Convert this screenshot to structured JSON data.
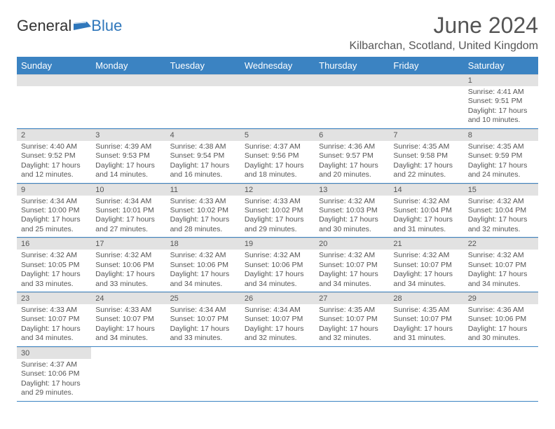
{
  "logo": {
    "text1": "General",
    "text2": "Blue",
    "flag_color": "#2f77bb"
  },
  "title": "June 2024",
  "location": "Kilbarchan, Scotland, United Kingdom",
  "calendar": {
    "header_bg": "#3b83c2",
    "header_fg": "#ffffff",
    "daynum_bg": "#e2e2e2",
    "border_color": "#3b83c2",
    "text_color": "#555555",
    "day_headers": [
      "Sunday",
      "Monday",
      "Tuesday",
      "Wednesday",
      "Thursday",
      "Friday",
      "Saturday"
    ],
    "first_weekday_index": 6,
    "days": [
      {
        "n": 1,
        "sunrise": "4:41 AM",
        "sunset": "9:51 PM",
        "daylight": "17 hours and 10 minutes."
      },
      {
        "n": 2,
        "sunrise": "4:40 AM",
        "sunset": "9:52 PM",
        "daylight": "17 hours and 12 minutes."
      },
      {
        "n": 3,
        "sunrise": "4:39 AM",
        "sunset": "9:53 PM",
        "daylight": "17 hours and 14 minutes."
      },
      {
        "n": 4,
        "sunrise": "4:38 AM",
        "sunset": "9:54 PM",
        "daylight": "17 hours and 16 minutes."
      },
      {
        "n": 5,
        "sunrise": "4:37 AM",
        "sunset": "9:56 PM",
        "daylight": "17 hours and 18 minutes."
      },
      {
        "n": 6,
        "sunrise": "4:36 AM",
        "sunset": "9:57 PM",
        "daylight": "17 hours and 20 minutes."
      },
      {
        "n": 7,
        "sunrise": "4:35 AM",
        "sunset": "9:58 PM",
        "daylight": "17 hours and 22 minutes."
      },
      {
        "n": 8,
        "sunrise": "4:35 AM",
        "sunset": "9:59 PM",
        "daylight": "17 hours and 24 minutes."
      },
      {
        "n": 9,
        "sunrise": "4:34 AM",
        "sunset": "10:00 PM",
        "daylight": "17 hours and 25 minutes."
      },
      {
        "n": 10,
        "sunrise": "4:34 AM",
        "sunset": "10:01 PM",
        "daylight": "17 hours and 27 minutes."
      },
      {
        "n": 11,
        "sunrise": "4:33 AM",
        "sunset": "10:02 PM",
        "daylight": "17 hours and 28 minutes."
      },
      {
        "n": 12,
        "sunrise": "4:33 AM",
        "sunset": "10:02 PM",
        "daylight": "17 hours and 29 minutes."
      },
      {
        "n": 13,
        "sunrise": "4:32 AM",
        "sunset": "10:03 PM",
        "daylight": "17 hours and 30 minutes."
      },
      {
        "n": 14,
        "sunrise": "4:32 AM",
        "sunset": "10:04 PM",
        "daylight": "17 hours and 31 minutes."
      },
      {
        "n": 15,
        "sunrise": "4:32 AM",
        "sunset": "10:04 PM",
        "daylight": "17 hours and 32 minutes."
      },
      {
        "n": 16,
        "sunrise": "4:32 AM",
        "sunset": "10:05 PM",
        "daylight": "17 hours and 33 minutes."
      },
      {
        "n": 17,
        "sunrise": "4:32 AM",
        "sunset": "10:06 PM",
        "daylight": "17 hours and 33 minutes."
      },
      {
        "n": 18,
        "sunrise": "4:32 AM",
        "sunset": "10:06 PM",
        "daylight": "17 hours and 34 minutes."
      },
      {
        "n": 19,
        "sunrise": "4:32 AM",
        "sunset": "10:06 PM",
        "daylight": "17 hours and 34 minutes."
      },
      {
        "n": 20,
        "sunrise": "4:32 AM",
        "sunset": "10:07 PM",
        "daylight": "17 hours and 34 minutes."
      },
      {
        "n": 21,
        "sunrise": "4:32 AM",
        "sunset": "10:07 PM",
        "daylight": "17 hours and 34 minutes."
      },
      {
        "n": 22,
        "sunrise": "4:32 AM",
        "sunset": "10:07 PM",
        "daylight": "17 hours and 34 minutes."
      },
      {
        "n": 23,
        "sunrise": "4:33 AM",
        "sunset": "10:07 PM",
        "daylight": "17 hours and 34 minutes."
      },
      {
        "n": 24,
        "sunrise": "4:33 AM",
        "sunset": "10:07 PM",
        "daylight": "17 hours and 34 minutes."
      },
      {
        "n": 25,
        "sunrise": "4:34 AM",
        "sunset": "10:07 PM",
        "daylight": "17 hours and 33 minutes."
      },
      {
        "n": 26,
        "sunrise": "4:34 AM",
        "sunset": "10:07 PM",
        "daylight": "17 hours and 32 minutes."
      },
      {
        "n": 27,
        "sunrise": "4:35 AM",
        "sunset": "10:07 PM",
        "daylight": "17 hours and 32 minutes."
      },
      {
        "n": 28,
        "sunrise": "4:35 AM",
        "sunset": "10:07 PM",
        "daylight": "17 hours and 31 minutes."
      },
      {
        "n": 29,
        "sunrise": "4:36 AM",
        "sunset": "10:06 PM",
        "daylight": "17 hours and 30 minutes."
      },
      {
        "n": 30,
        "sunrise": "4:37 AM",
        "sunset": "10:06 PM",
        "daylight": "17 hours and 29 minutes."
      }
    ],
    "labels": {
      "sunrise": "Sunrise:",
      "sunset": "Sunset:",
      "daylight": "Daylight:"
    }
  }
}
